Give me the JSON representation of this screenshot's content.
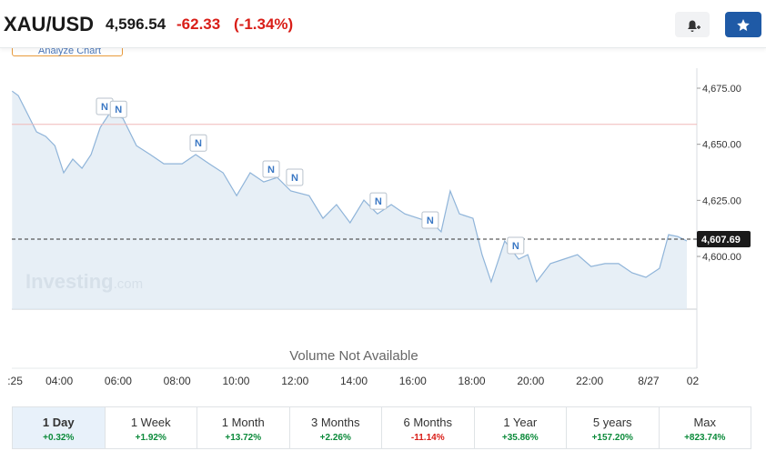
{
  "header": {
    "symbol": "XAU/USD",
    "price": "4,596.54",
    "change": "-62.33",
    "change_pct": "(-1.34%)"
  },
  "analyze_button": "Analyze Chart",
  "chart_data": {
    "type": "line",
    "color": "#8fb4d9",
    "x": [
      2.4,
      2.61,
      2.92,
      3.23,
      3.54,
      3.85,
      4.15,
      4.46,
      4.77,
      5.08,
      5.39,
      5.7,
      6.16,
      6.62,
      7.09,
      7.55,
      8.17,
      8.63,
      9.09,
      9.56,
      10.02,
      10.48,
      10.94,
      11.4,
      11.86,
      12.48,
      12.95,
      13.41,
      13.87,
      14.34,
      14.8,
      15.27,
      15.73,
      16.19,
      16.65,
      16.96,
      17.27,
      17.58,
      18.04,
      18.35,
      18.66,
      19.12,
      19.59,
      19.9,
      20.2,
      20.67,
      21.13,
      21.59,
      22.05,
      22.52,
      22.98,
      23.44,
      23.91,
      24.37,
      24.68,
      24.99,
      25.3
    ],
    "values": [
      4673.7,
      4671.7,
      4663.6,
      4655.5,
      4653.5,
      4649.4,
      4637.3,
      4643.4,
      4639.3,
      4645.4,
      4657.5,
      4663.6,
      4661.6,
      4649.4,
      4645.4,
      4641.3,
      4641.3,
      4645.4,
      4641.3,
      4637.3,
      4627.1,
      4637.3,
      4633.2,
      4635.2,
      4629.2,
      4627.1,
      4617.0,
      4623.1,
      4615.0,
      4625.1,
      4619.0,
      4623.1,
      4619.0,
      4617.0,
      4615.0,
      4611.0,
      4629.2,
      4619.0,
      4617.0,
      4600.8,
      4588.7,
      4606.9,
      4598.8,
      4600.8,
      4588.7,
      4596.8,
      4598.8,
      4600.8,
      4595.5,
      4596.8,
      4596.8,
      4592.7,
      4590.7,
      4594.7,
      4609.7,
      4608.9,
      4606.9
    ],
    "xlim": [
      2.39,
      25.64
    ],
    "xticks": [
      {
        "value": 2.5,
        "label": ":25"
      },
      {
        "value": 4,
        "label": "04:00"
      },
      {
        "value": 6,
        "label": "06:00"
      },
      {
        "value": 8,
        "label": "08:00"
      },
      {
        "value": 10,
        "label": "10:00"
      },
      {
        "value": 12,
        "label": "12:00"
      },
      {
        "value": 14,
        "label": "14:00"
      },
      {
        "value": 16,
        "label": "16:00"
      },
      {
        "value": 18,
        "label": "18:00"
      },
      {
        "value": 20,
        "label": "20:00"
      },
      {
        "value": 22,
        "label": "22:00"
      },
      {
        "value": 24,
        "label": "8/27"
      },
      {
        "value": 25.5,
        "label": "02"
      }
    ],
    "ylim": [
      4576.5,
      4690
    ],
    "yticks": [
      {
        "value": 4600,
        "label": "4,600.00"
      },
      {
        "value": 4625,
        "label": "4,625.00"
      },
      {
        "value": 4650,
        "label": "4,650.00"
      },
      {
        "value": 4675,
        "label": "4,675.00"
      }
    ],
    "prev_close": 4658.87,
    "last_price": {
      "value": 4607.69,
      "label": "4,607.69"
    },
    "news_markers": [
      {
        "x": 5.54,
        "value": 4666.9,
        "label": "N"
      },
      {
        "x": 6.01,
        "value": 4665.6,
        "label": "N"
      },
      {
        "x": 8.72,
        "value": 4650.6,
        "label": "N"
      },
      {
        "x": 11.19,
        "value": 4638.9,
        "label": "N"
      },
      {
        "x": 11.99,
        "value": 4635.3,
        "label": "N"
      },
      {
        "x": 14.83,
        "value": 4624.7,
        "label": "N"
      },
      {
        "x": 16.59,
        "value": 4616.2,
        "label": "N"
      },
      {
        "x": 19.49,
        "value": 4604.9,
        "label": "N"
      }
    ],
    "watermark": "Investing",
    "watermark_suffix": ".com",
    "volume_note": "Volume Not Available"
  },
  "periods": [
    {
      "label": "1 Day",
      "change": "+0.32%"
    },
    {
      "label": "1 Week",
      "change": "+1.92%"
    },
    {
      "label": "1 Month",
      "change": "+13.72%"
    },
    {
      "label": "3 Months",
      "change": "+2.26%"
    },
    {
      "label": "6 Months",
      "change": "-11.14%"
    },
    {
      "label": "1 Year",
      "change": "+35.86%"
    },
    {
      "label": "5 years",
      "change": "+157.20%"
    },
    {
      "label": "Max",
      "change": "+823.74%"
    }
  ]
}
